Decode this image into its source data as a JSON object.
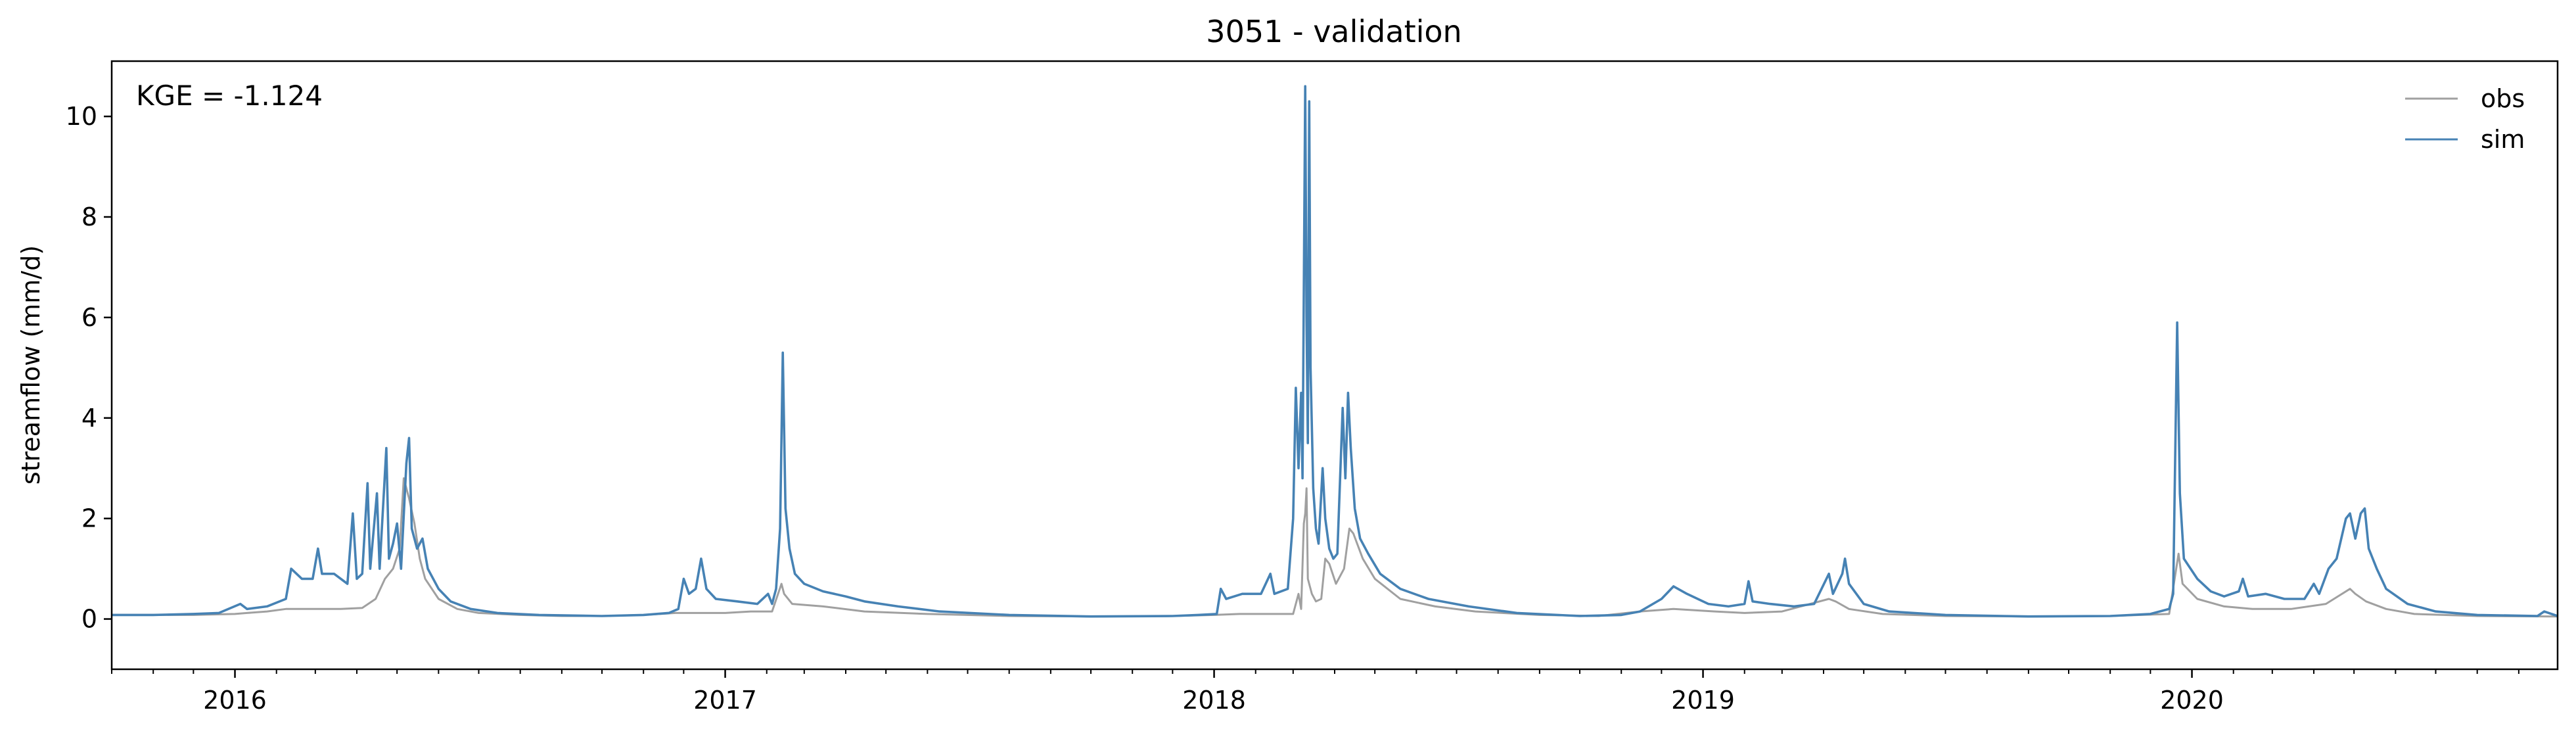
{
  "chart_data": {
    "type": "line",
    "title": "3051 - validation",
    "xlabel": "",
    "ylabel": "streamflow (mm/d)",
    "annotation": "KGE = -1.124",
    "xlim": [
      "2015-10-01",
      "2020-09-30"
    ],
    "ylim": [
      -1.0,
      11.1
    ],
    "yticks": [
      0,
      2,
      4,
      6,
      8,
      10
    ],
    "xticks": [
      {
        "date": "2016-01-01",
        "label": "2016"
      },
      {
        "date": "2017-01-01",
        "label": "2017"
      },
      {
        "date": "2018-01-01",
        "label": "2018"
      },
      {
        "date": "2019-01-01",
        "label": "2019"
      },
      {
        "date": "2020-01-01",
        "label": "2020"
      }
    ],
    "legend": "top-right",
    "grid": false,
    "series": [
      {
        "name": "obs",
        "color": "#a0a0a0",
        "points": [
          [
            "2015-10-01",
            0.08
          ],
          [
            "2015-11-01",
            0.08
          ],
          [
            "2015-12-01",
            0.08
          ],
          [
            "2016-01-01",
            0.1
          ],
          [
            "2016-01-10",
            0.12
          ],
          [
            "2016-01-25",
            0.15
          ],
          [
            "2016-02-08",
            0.2
          ],
          [
            "2016-03-01",
            0.2
          ],
          [
            "2016-03-20",
            0.2
          ],
          [
            "2016-04-05",
            0.22
          ],
          [
            "2016-04-15",
            0.4
          ],
          [
            "2016-04-22",
            0.8
          ],
          [
            "2016-04-28",
            1.0
          ],
          [
            "2016-05-03",
            1.4
          ],
          [
            "2016-05-06",
            2.8
          ],
          [
            "2016-05-08",
            2.6
          ],
          [
            "2016-05-10",
            2.4
          ],
          [
            "2016-05-14",
            1.9
          ],
          [
            "2016-05-18",
            1.2
          ],
          [
            "2016-05-22",
            0.8
          ],
          [
            "2016-06-01",
            0.4
          ],
          [
            "2016-06-15",
            0.2
          ],
          [
            "2016-07-01",
            0.12
          ],
          [
            "2016-08-01",
            0.08
          ],
          [
            "2016-09-01",
            0.06
          ],
          [
            "2016-10-01",
            0.06
          ],
          [
            "2016-11-01",
            0.08
          ],
          [
            "2016-11-25",
            0.12
          ],
          [
            "2016-12-10",
            0.12
          ],
          [
            "2017-01-01",
            0.12
          ],
          [
            "2017-01-20",
            0.15
          ],
          [
            "2017-02-05",
            0.15
          ],
          [
            "2017-02-12",
            0.7
          ],
          [
            "2017-02-14",
            0.5
          ],
          [
            "2017-02-20",
            0.3
          ],
          [
            "2017-03-15",
            0.25
          ],
          [
            "2017-04-15",
            0.15
          ],
          [
            "2017-06-01",
            0.1
          ],
          [
            "2017-08-01",
            0.06
          ],
          [
            "2017-10-01",
            0.05
          ],
          [
            "2017-12-01",
            0.06
          ],
          [
            "2018-01-01",
            0.08
          ],
          [
            "2018-01-20",
            0.1
          ],
          [
            "2018-02-15",
            0.1
          ],
          [
            "2018-03-01",
            0.1
          ],
          [
            "2018-03-05",
            0.5
          ],
          [
            "2018-03-07",
            0.2
          ],
          [
            "2018-03-09",
            1.9
          ],
          [
            "2018-03-10",
            2.1
          ],
          [
            "2018-03-11",
            2.6
          ],
          [
            "2018-03-12",
            0.8
          ],
          [
            "2018-03-15",
            0.5
          ],
          [
            "2018-03-18",
            0.35
          ],
          [
            "2018-03-22",
            0.4
          ],
          [
            "2018-03-25",
            1.2
          ],
          [
            "2018-03-28",
            1.1
          ],
          [
            "2018-04-02",
            0.7
          ],
          [
            "2018-04-08",
            1.0
          ],
          [
            "2018-04-12",
            1.8
          ],
          [
            "2018-04-15",
            1.7
          ],
          [
            "2018-04-22",
            1.2
          ],
          [
            "2018-05-01",
            0.8
          ],
          [
            "2018-05-20",
            0.4
          ],
          [
            "2018-06-15",
            0.25
          ],
          [
            "2018-07-15",
            0.15
          ],
          [
            "2018-09-01",
            0.08
          ],
          [
            "2018-10-15",
            0.06
          ],
          [
            "2018-11-15",
            0.15
          ],
          [
            "2018-12-10",
            0.2
          ],
          [
            "2019-01-10",
            0.15
          ],
          [
            "2019-02-01",
            0.12
          ],
          [
            "2019-03-01",
            0.15
          ],
          [
            "2019-04-05",
            0.4
          ],
          [
            "2019-04-10",
            0.35
          ],
          [
            "2019-04-20",
            0.2
          ],
          [
            "2019-05-15",
            0.1
          ],
          [
            "2019-07-01",
            0.06
          ],
          [
            "2019-09-01",
            0.05
          ],
          [
            "2019-11-01",
            0.06
          ],
          [
            "2019-12-15",
            0.1
          ],
          [
            "2019-12-22",
            1.3
          ],
          [
            "2019-12-25",
            0.7
          ],
          [
            "2020-01-05",
            0.4
          ],
          [
            "2020-01-25",
            0.25
          ],
          [
            "2020-02-15",
            0.2
          ],
          [
            "2020-03-15",
            0.2
          ],
          [
            "2020-04-10",
            0.3
          ],
          [
            "2020-04-28",
            0.6
          ],
          [
            "2020-05-02",
            0.5
          ],
          [
            "2020-05-10",
            0.35
          ],
          [
            "2020-05-25",
            0.2
          ],
          [
            "2020-06-15",
            0.1
          ],
          [
            "2020-08-01",
            0.06
          ],
          [
            "2020-09-30",
            0.05
          ]
        ]
      },
      {
        "name": "sim",
        "color": "#4682b4",
        "points": [
          [
            "2015-10-01",
            0.08
          ],
          [
            "2015-11-01",
            0.08
          ],
          [
            "2015-12-01",
            0.1
          ],
          [
            "2015-12-20",
            0.12
          ],
          [
            "2016-01-05",
            0.3
          ],
          [
            "2016-01-10",
            0.2
          ],
          [
            "2016-01-25",
            0.25
          ],
          [
            "2016-02-08",
            0.4
          ],
          [
            "2016-02-12",
            1.0
          ],
          [
            "2016-02-20",
            0.8
          ],
          [
            "2016-02-28",
            0.8
          ],
          [
            "2016-03-03",
            1.4
          ],
          [
            "2016-03-06",
            0.9
          ],
          [
            "2016-03-15",
            0.9
          ],
          [
            "2016-03-25",
            0.7
          ],
          [
            "2016-03-29",
            2.1
          ],
          [
            "2016-04-01",
            0.8
          ],
          [
            "2016-04-05",
            0.9
          ],
          [
            "2016-04-09",
            2.7
          ],
          [
            "2016-04-11",
            1.0
          ],
          [
            "2016-04-16",
            2.5
          ],
          [
            "2016-04-18",
            1.0
          ],
          [
            "2016-04-23",
            3.4
          ],
          [
            "2016-04-25",
            1.2
          ],
          [
            "2016-04-28",
            1.5
          ],
          [
            "2016-05-01",
            1.9
          ],
          [
            "2016-05-04",
            1.0
          ],
          [
            "2016-05-08",
            3.1
          ],
          [
            "2016-05-10",
            3.6
          ],
          [
            "2016-05-12",
            1.8
          ],
          [
            "2016-05-16",
            1.4
          ],
          [
            "2016-05-20",
            1.6
          ],
          [
            "2016-05-24",
            1.0
          ],
          [
            "2016-06-01",
            0.6
          ],
          [
            "2016-06-10",
            0.35
          ],
          [
            "2016-06-25",
            0.2
          ],
          [
            "2016-07-15",
            0.12
          ],
          [
            "2016-08-15",
            0.08
          ],
          [
            "2016-10-01",
            0.06
          ],
          [
            "2016-11-01",
            0.08
          ],
          [
            "2016-11-20",
            0.12
          ],
          [
            "2016-11-27",
            0.2
          ],
          [
            "2016-12-01",
            0.8
          ],
          [
            "2016-12-05",
            0.5
          ],
          [
            "2016-12-10",
            0.6
          ],
          [
            "2016-12-14",
            1.2
          ],
          [
            "2016-12-18",
            0.6
          ],
          [
            "2016-12-25",
            0.4
          ],
          [
            "2017-01-10",
            0.35
          ],
          [
            "2017-01-25",
            0.3
          ],
          [
            "2017-02-02",
            0.5
          ],
          [
            "2017-02-05",
            0.3
          ],
          [
            "2017-02-08",
            0.6
          ],
          [
            "2017-02-11",
            1.8
          ],
          [
            "2017-02-13",
            5.3
          ],
          [
            "2017-02-15",
            2.2
          ],
          [
            "2017-02-18",
            1.4
          ],
          [
            "2017-02-22",
            0.9
          ],
          [
            "2017-03-01",
            0.7
          ],
          [
            "2017-03-15",
            0.55
          ],
          [
            "2017-04-01",
            0.45
          ],
          [
            "2017-04-15",
            0.35
          ],
          [
            "2017-05-10",
            0.25
          ],
          [
            "2017-06-10",
            0.15
          ],
          [
            "2017-08-01",
            0.08
          ],
          [
            "2017-10-01",
            0.05
          ],
          [
            "2017-12-01",
            0.06
          ],
          [
            "2017-12-20",
            0.08
          ],
          [
            "2018-01-03",
            0.1
          ],
          [
            "2018-01-06",
            0.6
          ],
          [
            "2018-01-10",
            0.4
          ],
          [
            "2018-01-22",
            0.5
          ],
          [
            "2018-02-05",
            0.5
          ],
          [
            "2018-02-12",
            0.9
          ],
          [
            "2018-02-15",
            0.5
          ],
          [
            "2018-02-25",
            0.6
          ],
          [
            "2018-03-01",
            2.0
          ],
          [
            "2018-03-03",
            4.6
          ],
          [
            "2018-03-05",
            3.0
          ],
          [
            "2018-03-07",
            4.5
          ],
          [
            "2018-03-08",
            2.8
          ],
          [
            "2018-03-10",
            10.6
          ],
          [
            "2018-03-11",
            6.0
          ],
          [
            "2018-03-12",
            3.5
          ],
          [
            "2018-03-13",
            10.3
          ],
          [
            "2018-03-14",
            5.0
          ],
          [
            "2018-03-16",
            2.6
          ],
          [
            "2018-03-18",
            1.8
          ],
          [
            "2018-03-20",
            1.5
          ],
          [
            "2018-03-23",
            3.0
          ],
          [
            "2018-03-25",
            2.0
          ],
          [
            "2018-03-28",
            1.4
          ],
          [
            "2018-03-31",
            1.2
          ],
          [
            "2018-04-03",
            1.3
          ],
          [
            "2018-04-07",
            4.2
          ],
          [
            "2018-04-09",
            2.8
          ],
          [
            "2018-04-11",
            4.5
          ],
          [
            "2018-04-13",
            3.4
          ],
          [
            "2018-04-16",
            2.2
          ],
          [
            "2018-04-20",
            1.6
          ],
          [
            "2018-04-26",
            1.3
          ],
          [
            "2018-05-05",
            0.9
          ],
          [
            "2018-05-20",
            0.6
          ],
          [
            "2018-06-10",
            0.4
          ],
          [
            "2018-07-10",
            0.25
          ],
          [
            "2018-08-15",
            0.12
          ],
          [
            "2018-10-01",
            0.06
          ],
          [
            "2018-11-01",
            0.08
          ],
          [
            "2018-11-15",
            0.15
          ],
          [
            "2018-12-01",
            0.4
          ],
          [
            "2018-12-10",
            0.65
          ],
          [
            "2018-12-20",
            0.5
          ],
          [
            "2019-01-05",
            0.3
          ],
          [
            "2019-01-20",
            0.25
          ],
          [
            "2019-02-01",
            0.3
          ],
          [
            "2019-02-04",
            0.75
          ],
          [
            "2019-02-07",
            0.35
          ],
          [
            "2019-02-20",
            0.3
          ],
          [
            "2019-03-10",
            0.25
          ],
          [
            "2019-03-25",
            0.3
          ],
          [
            "2019-04-05",
            0.9
          ],
          [
            "2019-04-08",
            0.5
          ],
          [
            "2019-04-15",
            0.9
          ],
          [
            "2019-04-17",
            1.2
          ],
          [
            "2019-04-20",
            0.7
          ],
          [
            "2019-05-01",
            0.3
          ],
          [
            "2019-05-20",
            0.15
          ],
          [
            "2019-07-01",
            0.08
          ],
          [
            "2019-09-01",
            0.05
          ],
          [
            "2019-11-01",
            0.06
          ],
          [
            "2019-12-01",
            0.1
          ],
          [
            "2019-12-15",
            0.2
          ],
          [
            "2019-12-18",
            0.5
          ],
          [
            "2019-12-21",
            5.9
          ],
          [
            "2019-12-23",
            2.5
          ],
          [
            "2019-12-26",
            1.2
          ],
          [
            "2020-01-05",
            0.8
          ],
          [
            "2020-01-15",
            0.55
          ],
          [
            "2020-01-25",
            0.45
          ],
          [
            "2020-02-05",
            0.55
          ],
          [
            "2020-02-08",
            0.8
          ],
          [
            "2020-02-12",
            0.45
          ],
          [
            "2020-02-25",
            0.5
          ],
          [
            "2020-03-10",
            0.4
          ],
          [
            "2020-03-25",
            0.4
          ],
          [
            "2020-04-01",
            0.7
          ],
          [
            "2020-04-05",
            0.5
          ],
          [
            "2020-04-12",
            1.0
          ],
          [
            "2020-04-18",
            1.2
          ],
          [
            "2020-04-25",
            2.0
          ],
          [
            "2020-04-28",
            2.1
          ],
          [
            "2020-05-02",
            1.6
          ],
          [
            "2020-05-06",
            2.1
          ],
          [
            "2020-05-09",
            2.2
          ],
          [
            "2020-05-12",
            1.4
          ],
          [
            "2020-05-18",
            1.0
          ],
          [
            "2020-05-25",
            0.6
          ],
          [
            "2020-06-10",
            0.3
          ],
          [
            "2020-07-01",
            0.15
          ],
          [
            "2020-08-01",
            0.08
          ],
          [
            "2020-09-15",
            0.06
          ],
          [
            "2020-09-20",
            0.15
          ],
          [
            "2020-09-30",
            0.06
          ]
        ]
      }
    ]
  }
}
